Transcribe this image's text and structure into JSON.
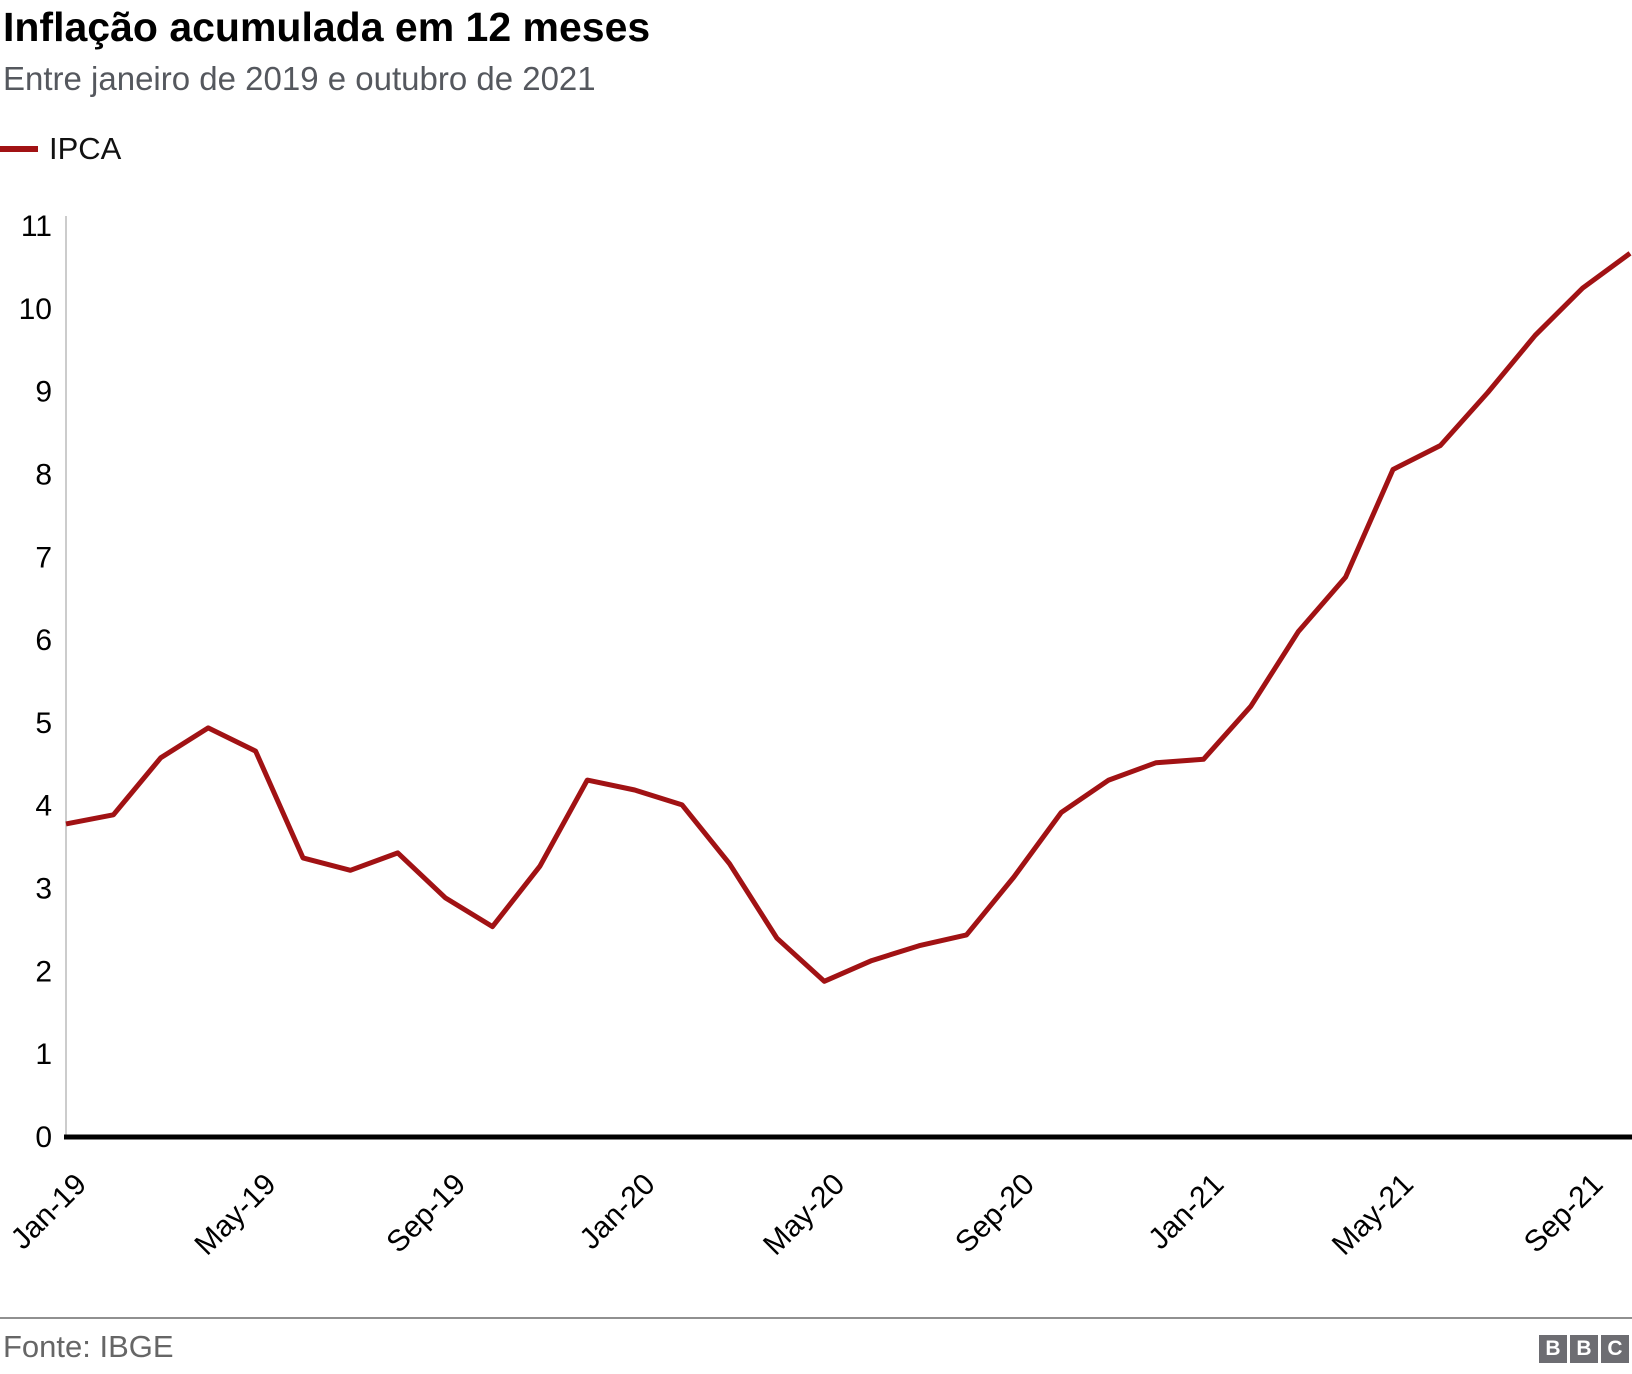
{
  "header": {
    "title": "Inflação acumulada em 12 meses",
    "subtitle": "Entre janeiro de 2019 e outubro de 2021"
  },
  "legend": {
    "label": "IPCA",
    "color": "#a11214"
  },
  "chart_data": {
    "type": "line",
    "title": "Inflação acumulada em 12 meses",
    "subtitle": "Entre janeiro de 2019 e outubro de 2021",
    "xlabel": "",
    "ylabel": "",
    "grid": false,
    "legend_position": "top-left",
    "ylim": [
      0,
      11
    ],
    "yticks": [
      0,
      1,
      2,
      3,
      4,
      5,
      6,
      7,
      8,
      9,
      10,
      11
    ],
    "xticks": [
      "Jan-19",
      "May-19",
      "Sep-19",
      "Jan-20",
      "May-20",
      "Sep-20",
      "Jan-21",
      "May-21",
      "Sep-21"
    ],
    "x": [
      "Jan-19",
      "Feb-19",
      "Mar-19",
      "Apr-19",
      "May-19",
      "Jun-19",
      "Jul-19",
      "Aug-19",
      "Sep-19",
      "Oct-19",
      "Nov-19",
      "Dec-19",
      "Jan-20",
      "Feb-20",
      "Mar-20",
      "Apr-20",
      "May-20",
      "Jun-20",
      "Jul-20",
      "Aug-20",
      "Sep-20",
      "Oct-20",
      "Nov-20",
      "Dec-20",
      "Jan-21",
      "Feb-21",
      "Mar-21",
      "Apr-21",
      "May-21",
      "Jun-21",
      "Jul-21",
      "Aug-21",
      "Sep-21",
      "Oct-21"
    ],
    "series": [
      {
        "name": "IPCA",
        "color": "#a11214",
        "values": [
          3.78,
          3.89,
          4.58,
          4.94,
          4.66,
          3.37,
          3.22,
          3.43,
          2.89,
          2.54,
          3.27,
          4.31,
          4.19,
          4.01,
          3.3,
          2.4,
          1.88,
          2.13,
          2.31,
          2.44,
          3.14,
          3.92,
          4.31,
          4.52,
          4.56,
          5.2,
          6.1,
          6.76,
          8.06,
          8.35,
          8.99,
          9.68,
          10.25,
          10.67
        ]
      }
    ],
    "axis_color": "#000000",
    "yaxis_line_color": "#cccccc",
    "tick_label_color": "#000000"
  },
  "footer": {
    "source": "Fonte: IBGE",
    "logo": [
      "B",
      "B",
      "C"
    ]
  }
}
